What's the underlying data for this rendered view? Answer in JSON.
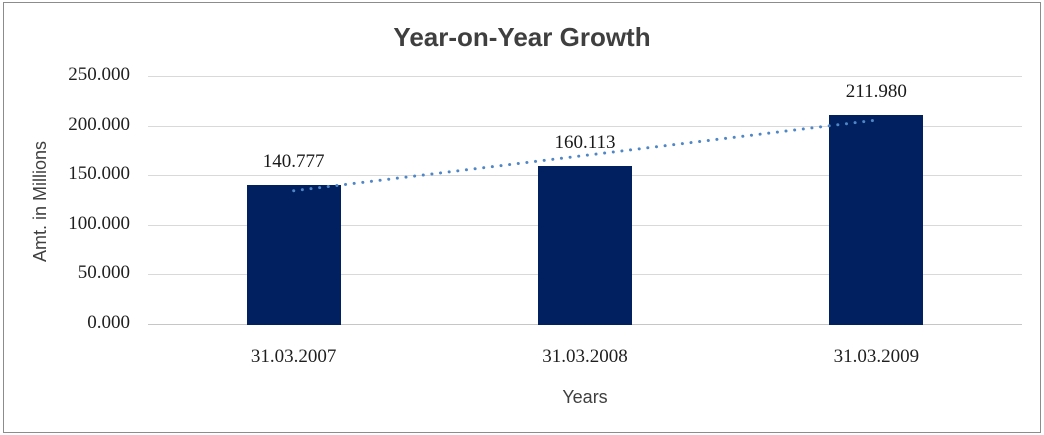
{
  "chart_data": {
    "type": "bar",
    "title": "Year-on-Year Growth",
    "xlabel": "Years",
    "ylabel": "Amt. in Millions",
    "categories": [
      "31.03.2007",
      "31.03.2008",
      "31.03.2009"
    ],
    "values": [
      140.777,
      160.113,
      211.98
    ],
    "value_labels": [
      "140.777",
      "160.113",
      "211.980"
    ],
    "ytick_values": [
      0,
      50,
      100,
      150,
      200,
      250
    ],
    "ytick_labels": [
      "0.000",
      "50.000",
      "100.000",
      "150.000",
      "200.000",
      "250.000"
    ],
    "ylim": [
      0,
      250
    ],
    "grid": "horizontal",
    "legend": "none",
    "bar_color": "#002060",
    "gridline_color": "#d9d9d9",
    "trendline": {
      "fit": "linear",
      "style": "dotted",
      "color": "#4f86c6"
    }
  }
}
